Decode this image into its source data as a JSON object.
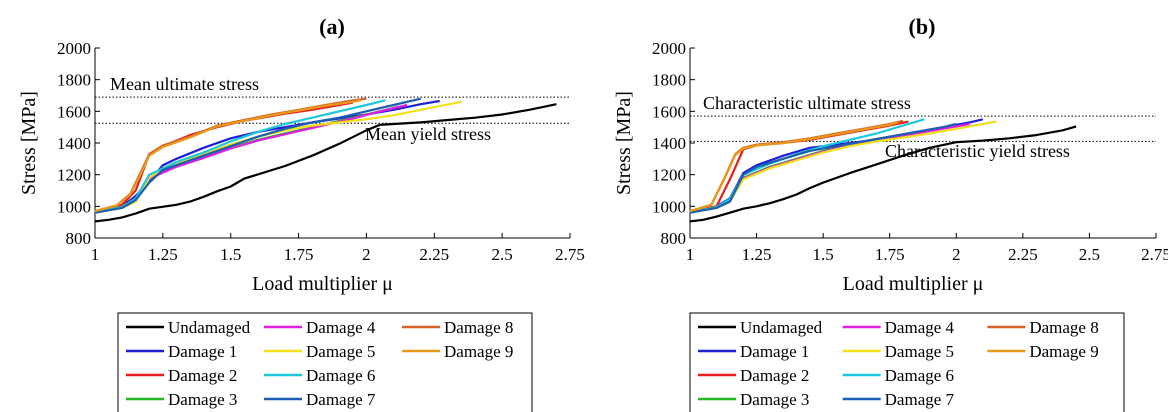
{
  "chart_data": [
    {
      "type": "line",
      "title": "(a)",
      "xlabel": "Load multiplier μ",
      "ylabel": "Stress [MPa]",
      "xlim": [
        1,
        2.75
      ],
      "ylim": [
        800,
        2000
      ],
      "xticks": [
        1,
        1.25,
        1.5,
        1.75,
        2,
        2.25,
        2.5,
        2.75
      ],
      "xtick_labels": [
        "1",
        "1.25",
        "1.5",
        "1.75",
        "2",
        "2.25",
        "2.5",
        "2.75"
      ],
      "yticks": [
        800,
        1000,
        1200,
        1400,
        1600,
        1800,
        2000
      ],
      "ytick_labels": [
        "800",
        "1000",
        "1200",
        "1400",
        "1600",
        "1800",
        "2000"
      ],
      "grid": false,
      "reference_lines": [
        {
          "label": "Mean ultimate stress",
          "y": 1690
        },
        {
          "label": "Mean yield stress",
          "y": 1525
        }
      ],
      "legend": {
        "placement": "bottom",
        "columns": 3,
        "rows": 4
      },
      "series": [
        {
          "name": "Undamaged",
          "color": "#000000",
          "x": [
            1,
            1.05,
            1.1,
            1.15,
            1.2,
            1.3,
            1.35,
            1.4,
            1.45,
            1.5,
            1.55,
            1.7,
            1.8,
            1.9,
            2.0,
            2.05,
            2.1,
            2.2,
            2.3,
            2.4,
            2.5,
            2.6,
            2.7
          ],
          "y": [
            905,
            915,
            930,
            955,
            985,
            1010,
            1030,
            1060,
            1095,
            1125,
            1175,
            1255,
            1320,
            1395,
            1480,
            1515,
            1520,
            1530,
            1545,
            1560,
            1580,
            1610,
            1645
          ]
        },
        {
          "name": "Damage 1",
          "color": "#1f1fd6",
          "x": [
            1,
            1.1,
            1.15,
            1.2,
            1.25,
            1.3,
            1.4,
            1.5,
            1.6,
            1.8,
            2.0,
            2.1,
            2.2,
            2.27
          ],
          "y": [
            965,
            1000,
            1065,
            1160,
            1260,
            1300,
            1370,
            1430,
            1470,
            1530,
            1580,
            1610,
            1645,
            1665
          ]
        },
        {
          "name": "Damage 2",
          "color": "#e81e1e",
          "x": [
            1,
            1.1,
            1.15,
            1.2,
            1.25,
            1.35,
            1.45,
            1.55,
            1.7,
            1.8,
            1.9,
            1.95
          ],
          "y": [
            965,
            1010,
            1100,
            1330,
            1380,
            1450,
            1500,
            1540,
            1585,
            1610,
            1640,
            1655
          ]
        },
        {
          "name": "Damage 3",
          "color": "#22b822",
          "x": [
            1,
            1.1,
            1.15,
            1.2,
            1.3,
            1.4,
            1.5,
            1.6,
            1.7,
            1.8,
            1.95,
            2.05,
            2.12
          ],
          "y": [
            960,
            995,
            1045,
            1180,
            1260,
            1310,
            1370,
            1420,
            1460,
            1500,
            1560,
            1600,
            1630
          ]
        },
        {
          "name": "Damage 4",
          "color": "#e020e0",
          "x": [
            1,
            1.1,
            1.15,
            1.2,
            1.3,
            1.4,
            1.5,
            1.6,
            1.7,
            1.8,
            1.95,
            2.05,
            2.15
          ],
          "y": [
            960,
            993,
            1040,
            1175,
            1250,
            1305,
            1365,
            1415,
            1455,
            1495,
            1555,
            1600,
            1640
          ]
        },
        {
          "name": "Damage 5",
          "color": "#f2e01a",
          "x": [
            1,
            1.1,
            1.15,
            1.2,
            1.25,
            1.35,
            1.5,
            1.6,
            1.7,
            1.8,
            1.9,
            2.0,
            2.1,
            2.2,
            2.35
          ],
          "y": [
            960,
            990,
            1030,
            1180,
            1240,
            1300,
            1390,
            1440,
            1480,
            1510,
            1530,
            1550,
            1575,
            1610,
            1660
          ]
        },
        {
          "name": "Damage 6",
          "color": "#1ec8dc",
          "x": [
            1,
            1.1,
            1.15,
            1.2,
            1.3,
            1.4,
            1.5,
            1.6,
            1.7,
            1.8,
            1.9,
            2.0,
            2.07
          ],
          "y": [
            960,
            995,
            1050,
            1200,
            1280,
            1340,
            1410,
            1470,
            1520,
            1560,
            1600,
            1640,
            1670
          ]
        },
        {
          "name": "Damage 7",
          "color": "#1a5fb0",
          "x": [
            1,
            1.1,
            1.15,
            1.2,
            1.25,
            1.3,
            1.4,
            1.5,
            1.55,
            1.6,
            1.7,
            1.8,
            1.9,
            2.0,
            2.1,
            2.2
          ],
          "y": [
            960,
            990,
            1040,
            1150,
            1230,
            1260,
            1320,
            1380,
            1410,
            1440,
            1490,
            1530,
            1560,
            1600,
            1640,
            1680
          ]
        },
        {
          "name": "Damage 8",
          "color": "#d8632a",
          "x": [
            1,
            1.08,
            1.13,
            1.17,
            1.2,
            1.25,
            1.35,
            1.45,
            1.55,
            1.65,
            1.75,
            1.85,
            1.95,
            2.0
          ],
          "y": [
            970,
            1005,
            1080,
            1220,
            1330,
            1385,
            1440,
            1510,
            1545,
            1580,
            1610,
            1640,
            1670,
            1680
          ]
        },
        {
          "name": "Damage 9",
          "color": "#e69a1a",
          "x": [
            1,
            1.08,
            1.13,
            1.17,
            1.2,
            1.25,
            1.35,
            1.45,
            1.55,
            1.65,
            1.75,
            1.85,
            1.95,
            1.98
          ],
          "y": [
            970,
            1005,
            1075,
            1210,
            1320,
            1375,
            1435,
            1505,
            1540,
            1575,
            1605,
            1635,
            1660,
            1670
          ]
        }
      ]
    },
    {
      "type": "line",
      "title": "(b)",
      "xlabel": "Load multiplier μ",
      "ylabel": "Stress [MPa]",
      "xlim": [
        1,
        2.75
      ],
      "ylim": [
        800,
        2000
      ],
      "xticks": [
        1,
        1.25,
        1.5,
        1.75,
        2,
        2.25,
        2.5,
        2.75
      ],
      "xtick_labels": [
        "1",
        "1.25",
        "1.5",
        "1.75",
        "2",
        "2.25",
        "2.5",
        "2.75"
      ],
      "yticks": [
        800,
        1000,
        1200,
        1400,
        1600,
        1800,
        2000
      ],
      "ytick_labels": [
        "800",
        "1000",
        "1200",
        "1400",
        "1600",
        "1800",
        "2000"
      ],
      "grid": false,
      "reference_lines": [
        {
          "label": "Characteristic ultimate stress",
          "y": 1570
        },
        {
          "label": "Characteristic yield stress",
          "y": 1410
        }
      ],
      "legend": {
        "placement": "bottom",
        "columns": 3,
        "rows": 4
      },
      "series": [
        {
          "name": "Undamaged",
          "color": "#000000",
          "x": [
            1,
            1.05,
            1.1,
            1.15,
            1.2,
            1.25,
            1.3,
            1.35,
            1.4,
            1.45,
            1.5,
            1.6,
            1.7,
            1.8,
            1.9,
            2.0,
            2.1,
            2.2,
            2.3,
            2.4,
            2.45
          ],
          "y": [
            905,
            915,
            935,
            960,
            985,
            1000,
            1020,
            1045,
            1075,
            1115,
            1150,
            1210,
            1265,
            1320,
            1370,
            1405,
            1415,
            1430,
            1450,
            1480,
            1505
          ]
        },
        {
          "name": "Damage 1",
          "color": "#1f1fd6",
          "x": [
            1,
            1.1,
            1.15,
            1.2,
            1.25,
            1.35,
            1.45,
            1.55,
            1.65,
            1.75,
            1.85,
            1.95,
            2.05,
            2.1
          ],
          "y": [
            965,
            1000,
            1050,
            1210,
            1260,
            1320,
            1370,
            1390,
            1410,
            1440,
            1470,
            1500,
            1530,
            1550
          ]
        },
        {
          "name": "Damage 2",
          "color": "#e81e1e",
          "x": [
            1,
            1.1,
            1.15,
            1.2,
            1.25,
            1.35,
            1.45,
            1.55,
            1.65,
            1.75,
            1.82
          ],
          "y": [
            965,
            1000,
            1170,
            1360,
            1385,
            1400,
            1420,
            1450,
            1480,
            1510,
            1535
          ]
        },
        {
          "name": "Damage 3",
          "color": "#22b822",
          "x": [
            1,
            1.1,
            1.15,
            1.2,
            1.3,
            1.4,
            1.5,
            1.6,
            1.7,
            1.8,
            1.9,
            2.0
          ],
          "y": [
            960,
            995,
            1040,
            1180,
            1250,
            1300,
            1350,
            1390,
            1420,
            1450,
            1480,
            1510
          ]
        },
        {
          "name": "Damage 4",
          "color": "#e020e0",
          "x": [
            1,
            1.1,
            1.15,
            1.2,
            1.3,
            1.4,
            1.5,
            1.6,
            1.7,
            1.8,
            1.9,
            2.0,
            2.05
          ],
          "y": [
            960,
            993,
            1035,
            1175,
            1245,
            1295,
            1345,
            1385,
            1415,
            1445,
            1475,
            1505,
            1520
          ]
        },
        {
          "name": "Damage 5",
          "color": "#f2e01a",
          "x": [
            1,
            1.1,
            1.15,
            1.2,
            1.3,
            1.4,
            1.5,
            1.6,
            1.7,
            1.8,
            1.9,
            2.0,
            2.1,
            2.15
          ],
          "y": [
            960,
            990,
            1030,
            1170,
            1240,
            1290,
            1340,
            1380,
            1410,
            1435,
            1460,
            1490,
            1520,
            1535
          ]
        },
        {
          "name": "Damage 6",
          "color": "#1ec8dc",
          "x": [
            1,
            1.1,
            1.15,
            1.2,
            1.3,
            1.4,
            1.5,
            1.6,
            1.7,
            1.8,
            1.88
          ],
          "y": [
            960,
            995,
            1045,
            1200,
            1270,
            1330,
            1380,
            1420,
            1460,
            1510,
            1550
          ]
        },
        {
          "name": "Damage 7",
          "color": "#1a5fb0",
          "x": [
            1,
            1.1,
            1.15,
            1.2,
            1.25,
            1.35,
            1.45,
            1.55,
            1.65,
            1.75,
            1.85,
            1.95,
            2.0
          ],
          "y": [
            960,
            990,
            1030,
            1200,
            1250,
            1300,
            1350,
            1380,
            1410,
            1440,
            1470,
            1500,
            1520
          ]
        },
        {
          "name": "Damage 8",
          "color": "#d8632a",
          "x": [
            1,
            1.08,
            1.13,
            1.17,
            1.2,
            1.25,
            1.35,
            1.45,
            1.55,
            1.65,
            1.75,
            1.8
          ],
          "y": [
            970,
            1010,
            1180,
            1330,
            1370,
            1390,
            1405,
            1430,
            1460,
            1490,
            1520,
            1540
          ]
        },
        {
          "name": "Damage 9",
          "color": "#e69a1a",
          "x": [
            1,
            1.08,
            1.13,
            1.17,
            1.2,
            1.25,
            1.35,
            1.45,
            1.55,
            1.65,
            1.75,
            1.78
          ],
          "y": [
            970,
            1008,
            1175,
            1325,
            1365,
            1385,
            1400,
            1425,
            1455,
            1485,
            1515,
            1530
          ]
        }
      ]
    }
  ]
}
